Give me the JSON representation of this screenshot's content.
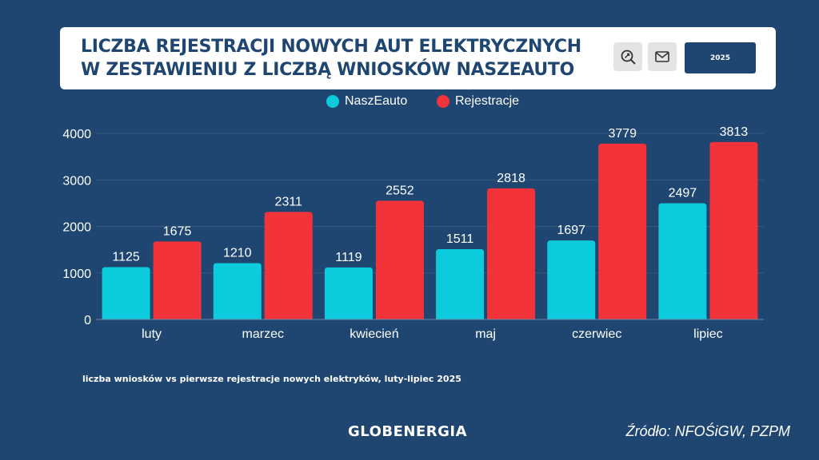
{
  "header": {
    "title_line1": "LICZBA REJESTRACJI NOWYCH AUT ELEKTRYCZNYCH",
    "title_line2": "W ZESTAWIENIU Z LICZBĄ WNIOSKÓW NASZEAUTO",
    "year_button": "2025",
    "icons": [
      "search-refresh-icon",
      "mail-icon"
    ]
  },
  "subtitle": "liczba wniosków vs pierwsze rejestracje nowych elektryków, luty-lipiec 2025",
  "logo": "GLOBENERGIA",
  "source": "Źródło: NFOŚiGW, PZPM",
  "colors": {
    "background": "#1f4670",
    "naszeauto": "#0ccbdc",
    "rejestracje": "#f3333a"
  },
  "chart_data": {
    "type": "bar",
    "categories": [
      "luty",
      "marzec",
      "kwiecień",
      "maj",
      "czerwiec",
      "lipiec"
    ],
    "series": [
      {
        "name": "NaszEauto",
        "values": [
          1125,
          1210,
          1119,
          1511,
          1697,
          2497
        ],
        "color": "#0ccbdc"
      },
      {
        "name": "Rejestracje",
        "values": [
          1675,
          2311,
          2552,
          2818,
          3779,
          3813
        ],
        "color": "#f3333a"
      }
    ],
    "yticks": [
      0,
      1000,
      2000,
      3000,
      4000
    ],
    "ylim": [
      0,
      4000
    ],
    "grid": true,
    "legend": "top-center",
    "data_labels": true
  }
}
